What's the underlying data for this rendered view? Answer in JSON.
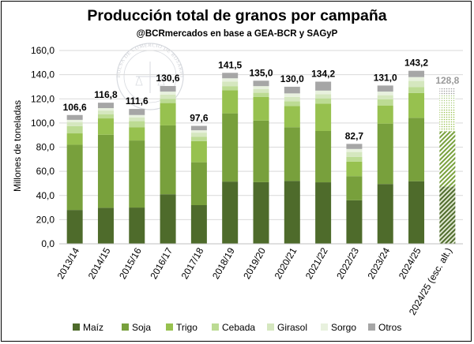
{
  "chart_data": {
    "type": "bar",
    "stacked": true,
    "title": "Producción total de granos por campaña",
    "subtitle": "@BCRmercados en base a GEA-BCR y SAGyP",
    "ylabel": "Millones de toneladas",
    "xlabel": "",
    "ylim": [
      0,
      160
    ],
    "yticks": [
      "0,0",
      "20,0",
      "40,0",
      "60,0",
      "80,0",
      "100,0",
      "120,0",
      "140,0",
      "160,0"
    ],
    "categories": [
      "2013/14",
      "2014/15",
      "2015/16",
      "2016/17",
      "2017/18",
      "2018/19",
      "2019/20",
      "2020/21",
      "2021/22",
      "2022/23",
      "2023/24",
      "2024/25",
      "2024/25 (esc. alt.)"
    ],
    "totals": [
      "106,6",
      "116,8",
      "111,6",
      "130,6",
      "97,6",
      "141,5",
      "135,0",
      "130,0",
      "134,2",
      "82,7",
      "131,0",
      "143,2",
      "128,8"
    ],
    "hatched_category": "2024/25 (esc. alt.)",
    "grid": true,
    "legend_position": "bottom",
    "series": [
      {
        "name": "Maíz",
        "color": "#4e6b2b",
        "values": [
          28.0,
          29.8,
          30.0,
          41.0,
          32.0,
          51.5,
          51.0,
          52.0,
          50.9,
          36.0,
          49.5,
          51.8,
          47.5
        ]
      },
      {
        "name": "Soja",
        "color": "#78a03c",
        "values": [
          54.0,
          60.5,
          55.5,
          57.0,
          35.5,
          56.5,
          51.0,
          44.5,
          42.5,
          20.0,
          50.0,
          52.5,
          45.5
        ]
      },
      {
        "name": "Trigo",
        "color": "#97c14f",
        "values": [
          9.4,
          13.5,
          11.0,
          18.5,
          17.5,
          19.0,
          19.5,
          17.5,
          22.5,
          12.0,
          15.0,
          20.5,
          19.0
        ]
      },
      {
        "name": "Cebada",
        "color": "#bcdb93",
        "values": [
          6.0,
          3.5,
          5.0,
          3.5,
          3.5,
          3.5,
          3.5,
          4.0,
          4.5,
          4.0,
          5.0,
          5.0,
          4.0
        ]
      },
      {
        "name": "Girasol",
        "color": "#d5e7bf",
        "values": [
          3.2,
          3.0,
          3.0,
          3.5,
          3.5,
          3.8,
          3.0,
          3.5,
          3.4,
          4.0,
          3.5,
          5.0,
          4.0
        ]
      },
      {
        "name": "Sorgo",
        "color": "#e8f1de",
        "values": [
          2.0,
          2.0,
          2.1,
          2.5,
          2.0,
          2.7,
          2.5,
          3.0,
          3.0,
          2.5,
          3.0,
          3.2,
          3.0
        ]
      },
      {
        "name": "Otros",
        "color": "#a6a6a6",
        "values": [
          4.0,
          4.5,
          5.0,
          4.6,
          3.6,
          4.5,
          4.5,
          5.5,
          7.4,
          4.2,
          5.0,
          5.2,
          5.8
        ]
      }
    ]
  },
  "watermark": {
    "text": "BOLSA DE COMERCIO DE ROSARIO"
  }
}
